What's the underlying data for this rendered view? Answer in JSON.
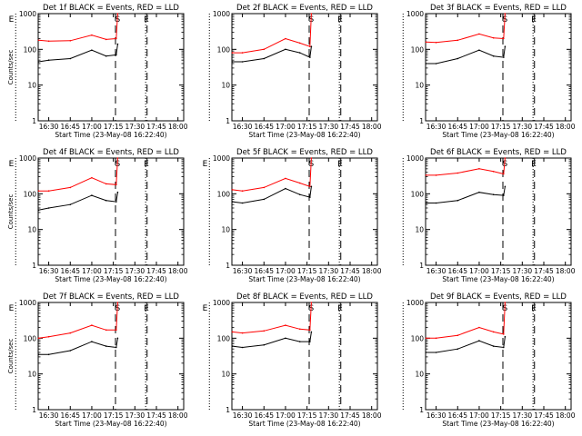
{
  "chart_data": [
    {
      "type": "line",
      "title": "Det 1f BLACK = Events, RED = LLD",
      "ylabel": "Counts/sec",
      "xlabel": "Start Time (23-May-08 16:22:40)",
      "xlim": [
        "16:22:40",
        "18:04"
      ],
      "ylim": [
        1,
        1000
      ],
      "yscale": "log",
      "ytick_labels": [
        "1",
        "10",
        "100",
        "1000"
      ],
      "xtick_labels": [
        "16:30",
        "16:45",
        "17:00",
        "17:15",
        "17:30",
        "17:45",
        "18:00"
      ],
      "markers": [
        "E",
        "S",
        "E"
      ],
      "series": [
        {
          "color": "#ff0000",
          "points": [
            [
              "16:23",
              180
            ],
            [
              "16:30",
              170
            ],
            [
              "16:45",
              175
            ],
            [
              "17:00",
              250
            ],
            [
              "17:10",
              190
            ],
            [
              "17:17",
              200
            ],
            [
              "17:18",
              1000
            ]
          ]
        },
        {
          "color": "#000000",
          "points": [
            [
              "16:23",
              45
            ],
            [
              "16:30",
              50
            ],
            [
              "16:45",
              55
            ],
            [
              "17:00",
              95
            ],
            [
              "17:10",
              65
            ],
            [
              "17:17",
              70
            ],
            [
              "17:18",
              140
            ]
          ]
        }
      ]
    },
    {
      "type": "line",
      "title": "Det 2f BLACK = Events, RED = LLD",
      "ylabel": "",
      "xlabel": "Start Time (23-May-08 16:22:40)",
      "xlim": [
        "16:22:40",
        "18:04"
      ],
      "ylim": [
        1,
        1000
      ],
      "yscale": "log",
      "ytick_labels": [
        "1",
        "10",
        "100",
        "1000"
      ],
      "xtick_labels": [
        "16:30",
        "16:45",
        "17:00",
        "17:15",
        "17:30",
        "17:45",
        "18:00"
      ],
      "markers": [
        "S",
        "E"
      ],
      "series": [
        {
          "color": "#ff0000",
          "points": [
            [
              "16:23",
              80
            ],
            [
              "16:30",
              80
            ],
            [
              "16:45",
              100
            ],
            [
              "17:00",
              200
            ],
            [
              "17:10",
              150
            ],
            [
              "17:17",
              120
            ],
            [
              "17:18",
              1000
            ]
          ]
        },
        {
          "color": "#000000",
          "points": [
            [
              "16:23",
              45
            ],
            [
              "16:30",
              45
            ],
            [
              "16:45",
              55
            ],
            [
              "17:00",
              100
            ],
            [
              "17:10",
              80
            ],
            [
              "17:17",
              60
            ],
            [
              "17:18",
              120
            ]
          ]
        }
      ]
    },
    {
      "type": "line",
      "title": "Det 3f BLACK = Events, RED = LLD",
      "ylabel": "",
      "xlabel": "Start Time (23-May-08 16:22:40)",
      "xlim": [
        "16:22:40",
        "18:04"
      ],
      "ylim": [
        1,
        1000
      ],
      "yscale": "log",
      "ytick_labels": [
        "1",
        "10",
        "100",
        "1000"
      ],
      "xtick_labels": [
        "16:30",
        "16:45",
        "17:00",
        "17:15",
        "17:30",
        "17:45",
        "18:00"
      ],
      "markers": [
        "S",
        "E"
      ],
      "series": [
        {
          "color": "#ff0000",
          "points": [
            [
              "16:23",
              160
            ],
            [
              "16:30",
              155
            ],
            [
              "16:45",
              180
            ],
            [
              "17:00",
              270
            ],
            [
              "17:10",
              210
            ],
            [
              "17:17",
              200
            ],
            [
              "17:18",
              1000
            ]
          ]
        },
        {
          "color": "#000000",
          "points": [
            [
              "16:23",
              40
            ],
            [
              "16:30",
              40
            ],
            [
              "16:45",
              55
            ],
            [
              "17:00",
              95
            ],
            [
              "17:10",
              65
            ],
            [
              "17:17",
              60
            ],
            [
              "17:18",
              120
            ]
          ]
        }
      ]
    },
    {
      "type": "line",
      "title": "Det 4f BLACK = Events, RED = LLD",
      "ylabel": "Counts/sec",
      "xlabel": "Start Time (23-May-08 16:22:40)",
      "xlim": [
        "16:22:40",
        "18:04"
      ],
      "ylim": [
        1,
        1000
      ],
      "yscale": "log",
      "ytick_labels": [
        "1",
        "10",
        "100",
        "1000"
      ],
      "xtick_labels": [
        "16:30",
        "16:45",
        "17:00",
        "17:15",
        "17:30",
        "17:45",
        "18:00"
      ],
      "markers": [
        "E",
        "S",
        "E"
      ],
      "series": [
        {
          "color": "#ff0000",
          "points": [
            [
              "16:23",
              120
            ],
            [
              "16:30",
              120
            ],
            [
              "16:45",
              150
            ],
            [
              "17:00",
              280
            ],
            [
              "17:10",
              190
            ],
            [
              "17:17",
              180
            ],
            [
              "17:18",
              1000
            ]
          ]
        },
        {
          "color": "#000000",
          "points": [
            [
              "16:23",
              35
            ],
            [
              "16:30",
              40
            ],
            [
              "16:45",
              50
            ],
            [
              "17:00",
              90
            ],
            [
              "17:10",
              65
            ],
            [
              "17:17",
              60
            ],
            [
              "17:18",
              110
            ]
          ]
        }
      ]
    },
    {
      "type": "line",
      "title": "Det 5f BLACK = Events, RED = LLD",
      "ylabel": "",
      "xlabel": "Start Time (23-May-08 16:22:40)",
      "xlim": [
        "16:22:40",
        "18:04"
      ],
      "ylim": [
        1,
        1000
      ],
      "yscale": "log",
      "ytick_labels": [
        "1",
        "10",
        "100",
        "1000"
      ],
      "xtick_labels": [
        "16:30",
        "16:45",
        "17:00",
        "17:15",
        "17:30",
        "17:45",
        "18:00"
      ],
      "markers": [
        "E",
        "S",
        "E"
      ],
      "series": [
        {
          "color": "#ff0000",
          "points": [
            [
              "16:23",
              130
            ],
            [
              "16:30",
              120
            ],
            [
              "16:45",
              150
            ],
            [
              "17:00",
              270
            ],
            [
              "17:10",
              200
            ],
            [
              "17:17",
              160
            ],
            [
              "17:18",
              1000
            ]
          ]
        },
        {
          "color": "#000000",
          "points": [
            [
              "16:23",
              60
            ],
            [
              "16:30",
              55
            ],
            [
              "16:45",
              70
            ],
            [
              "17:00",
              140
            ],
            [
              "17:10",
              95
            ],
            [
              "17:17",
              80
            ],
            [
              "17:18",
              160
            ]
          ]
        }
      ]
    },
    {
      "type": "line",
      "title": "Det 6f BLACK = Events, RED = LLD",
      "ylabel": "",
      "xlabel": "Start Time (23-May-08 16:22:40)",
      "xlim": [
        "16:22:40",
        "18:04"
      ],
      "ylim": [
        1,
        1000
      ],
      "yscale": "log",
      "ytick_labels": [
        "1",
        "10",
        "100",
        "1000"
      ],
      "xtick_labels": [
        "16:30",
        "16:45",
        "17:00",
        "17:15",
        "17:30",
        "17:45",
        "18:00"
      ],
      "markers": [
        "S",
        "E"
      ],
      "series": [
        {
          "color": "#ff0000",
          "points": [
            [
              "16:23",
              330
            ],
            [
              "16:30",
              330
            ],
            [
              "16:45",
              380
            ],
            [
              "17:00",
              500
            ],
            [
              "17:10",
              420
            ],
            [
              "17:17",
              360
            ],
            [
              "17:18",
              1000
            ]
          ]
        },
        {
          "color": "#000000",
          "points": [
            [
              "16:23",
              55
            ],
            [
              "16:30",
              55
            ],
            [
              "16:45",
              65
            ],
            [
              "17:00",
              110
            ],
            [
              "17:10",
              95
            ],
            [
              "17:17",
              90
            ],
            [
              "17:18",
              160
            ]
          ]
        }
      ]
    },
    {
      "type": "line",
      "title": "Det 7f BLACK = Events, RED = LLD",
      "ylabel": "Counts/sec",
      "xlabel": "Start Time (23-May-08 16:22:40)",
      "xlim": [
        "16:22:40",
        "18:04"
      ],
      "ylim": [
        1,
        1000
      ],
      "yscale": "log",
      "ytick_labels": [
        "1",
        "10",
        "100",
        "1000"
      ],
      "xtick_labels": [
        "16:30",
        "16:45",
        "17:00",
        "17:15",
        "17:30",
        "17:45",
        "18:00"
      ],
      "markers": [
        "E",
        "S",
        "E"
      ],
      "series": [
        {
          "color": "#ff0000",
          "points": [
            [
              "16:23",
              100
            ],
            [
              "16:30",
              110
            ],
            [
              "16:45",
              140
            ],
            [
              "17:00",
              230
            ],
            [
              "17:10",
              170
            ],
            [
              "17:17",
              170
            ],
            [
              "17:18",
              1000
            ]
          ]
        },
        {
          "color": "#000000",
          "points": [
            [
              "16:23",
              35
            ],
            [
              "16:30",
              35
            ],
            [
              "16:45",
              45
            ],
            [
              "17:00",
              80
            ],
            [
              "17:10",
              60
            ],
            [
              "17:17",
              55
            ],
            [
              "17:18",
              100
            ]
          ]
        }
      ]
    },
    {
      "type": "line",
      "title": "Det 8f BLACK = Events, RED = LLD",
      "ylabel": "",
      "xlabel": "Start Time (23-May-08 16:22:40)",
      "xlim": [
        "16:22:40",
        "18:04"
      ],
      "ylim": [
        1,
        1000
      ],
      "yscale": "log",
      "ytick_labels": [
        "1",
        "10",
        "100",
        "1000"
      ],
      "xtick_labels": [
        "16:30",
        "16:45",
        "17:00",
        "17:15",
        "17:30",
        "17:45",
        "18:00"
      ],
      "markers": [
        "E",
        "S",
        "E"
      ],
      "series": [
        {
          "color": "#ff0000",
          "points": [
            [
              "16:23",
              150
            ],
            [
              "16:30",
              140
            ],
            [
              "16:45",
              160
            ],
            [
              "17:00",
              230
            ],
            [
              "17:10",
              180
            ],
            [
              "17:17",
              170
            ],
            [
              "17:18",
              1000
            ]
          ]
        },
        {
          "color": "#000000",
          "points": [
            [
              "16:23",
              60
            ],
            [
              "16:30",
              55
            ],
            [
              "16:45",
              65
            ],
            [
              "17:00",
              100
            ],
            [
              "17:10",
              80
            ],
            [
              "17:17",
              80
            ],
            [
              "17:18",
              150
            ]
          ]
        }
      ]
    },
    {
      "type": "line",
      "title": "Det 9f BLACK = Events, RED = LLD",
      "ylabel": "",
      "xlabel": "Start Time (23-May-08 16:22:40)",
      "xlim": [
        "16:22:40",
        "18:04"
      ],
      "ylim": [
        1,
        1000
      ],
      "yscale": "log",
      "ytick_labels": [
        "1",
        "10",
        "100",
        "1000"
      ],
      "xtick_labels": [
        "16:30",
        "16:45",
        "17:00",
        "17:15",
        "17:30",
        "17:45",
        "18:00"
      ],
      "markers": [
        "S",
        "E"
      ],
      "series": [
        {
          "color": "#ff0000",
          "points": [
            [
              "16:23",
              100
            ],
            [
              "16:30",
              100
            ],
            [
              "16:45",
              120
            ],
            [
              "17:00",
              200
            ],
            [
              "17:10",
              150
            ],
            [
              "17:17",
              130
            ],
            [
              "17:18",
              1000
            ]
          ]
        },
        {
          "color": "#000000",
          "points": [
            [
              "16:23",
              40
            ],
            [
              "16:30",
              40
            ],
            [
              "16:45",
              50
            ],
            [
              "17:00",
              85
            ],
            [
              "17:10",
              60
            ],
            [
              "17:17",
              55
            ],
            [
              "17:18",
              110
            ]
          ]
        }
      ]
    }
  ]
}
